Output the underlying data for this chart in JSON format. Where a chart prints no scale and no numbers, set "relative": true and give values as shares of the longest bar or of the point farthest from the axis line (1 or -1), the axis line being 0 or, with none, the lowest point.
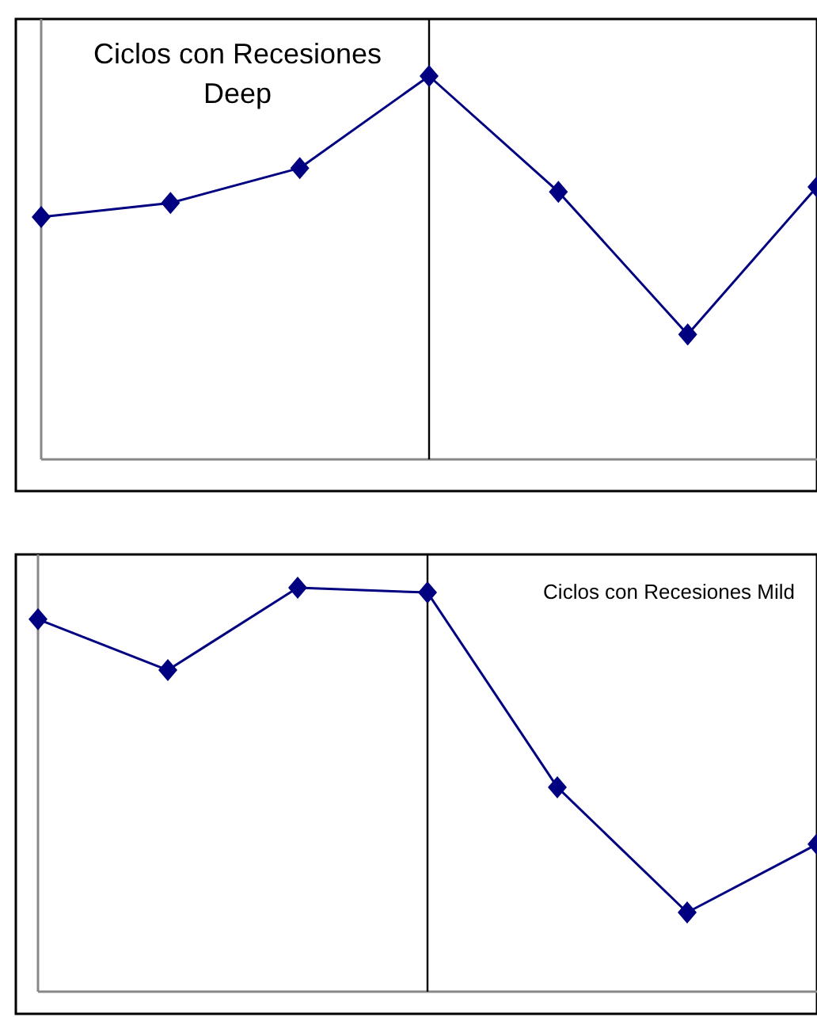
{
  "chart_data": [
    {
      "type": "line",
      "title": "Ciclos con Recesiones Deep",
      "relative": true,
      "marker": "diamond",
      "categories": [
        null,
        null,
        null,
        null,
        null,
        null,
        null
      ],
      "series": [
        {
          "color": "#000080",
          "values": [
            0.632,
            0.669,
            0.76,
            1,
            0.698,
            0.326,
            0.711
          ]
        }
      ]
    },
    {
      "type": "line",
      "title": "Ciclos con Recesiones Mild",
      "relative": true,
      "marker": "diamond",
      "categories": [
        null,
        null,
        null,
        null,
        null,
        null,
        null
      ],
      "series": [
        {
          "color": "#000080",
          "values": [
            0.922,
            0.796,
            1,
            0.988,
            0.506,
            0.196,
            0.365
          ]
        }
      ]
    }
  ]
}
